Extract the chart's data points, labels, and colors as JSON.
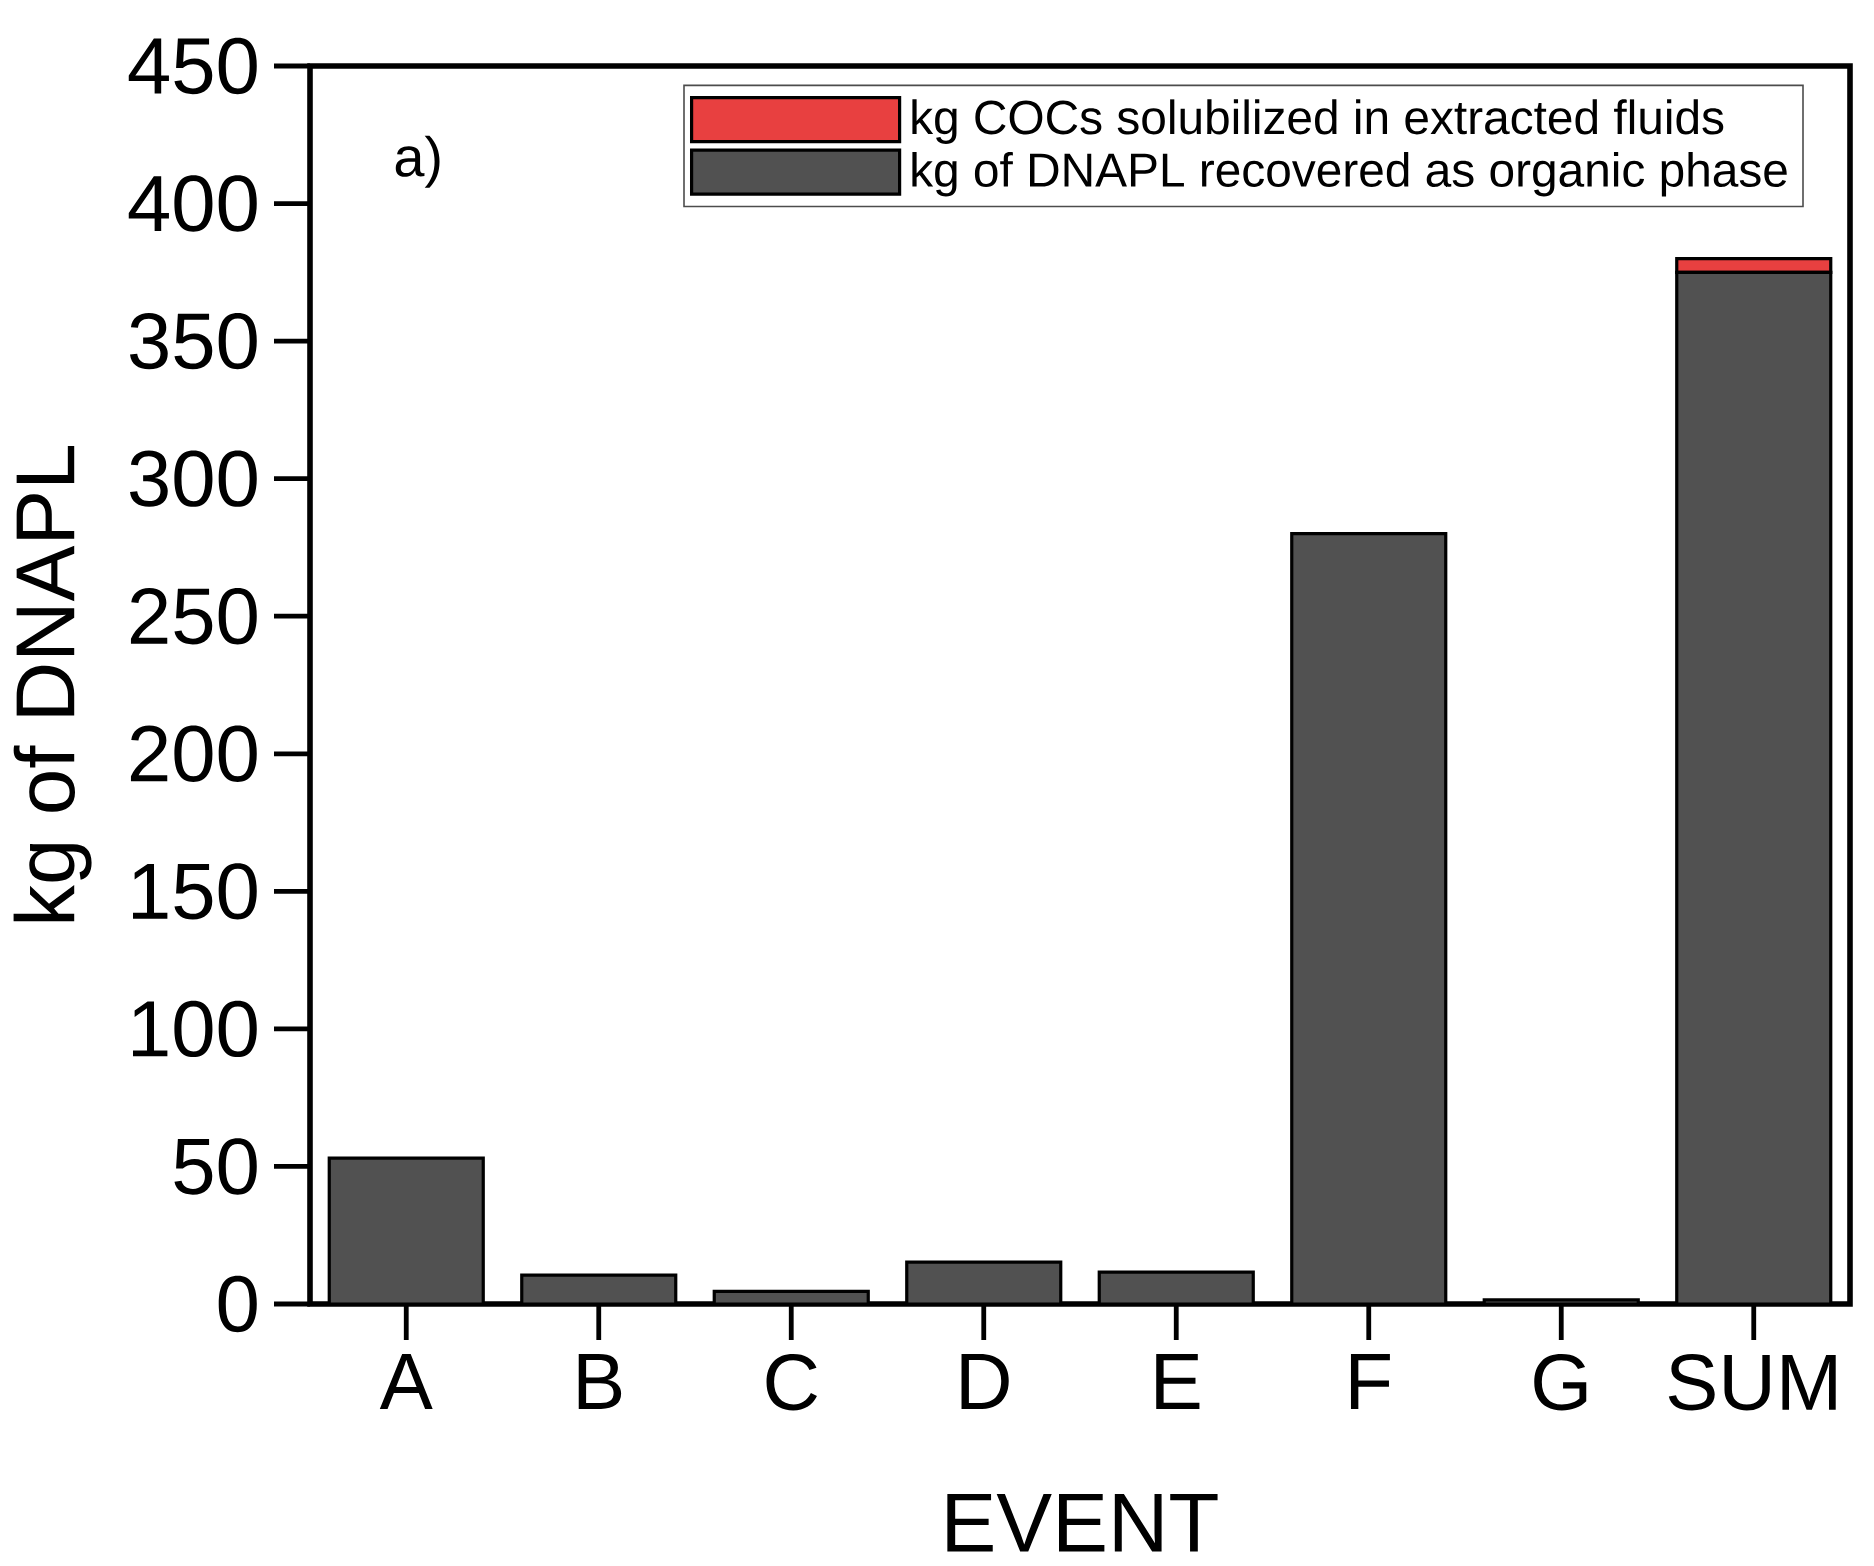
{
  "chart_data": {
    "type": "bar",
    "stacked": true,
    "xlabel": "EVENT",
    "ylabel": "kg of DNAPL",
    "categories": [
      "A",
      "B",
      "C",
      "D",
      "E",
      "F",
      "G",
      "SUM"
    ],
    "series": [
      {
        "name": "kg of DNAPL recovered as organic phase",
        "color": "#515151",
        "values": [
          53,
          10.5,
          4.6,
          15.2,
          11.6,
          280,
          1.5,
          375
        ]
      },
      {
        "name": "kg  COCs solubilized in extracted fluids",
        "color": "#e84040",
        "values": [
          null,
          null,
          null,
          null,
          null,
          null,
          null,
          5
        ]
      }
    ],
    "ylim": [
      0,
      450
    ],
    "yticks": [
      0,
      50,
      100,
      150,
      200,
      250,
      300,
      350,
      400,
      450
    ],
    "legend": "top right",
    "grid": false,
    "annotations": [
      "a)"
    ]
  }
}
